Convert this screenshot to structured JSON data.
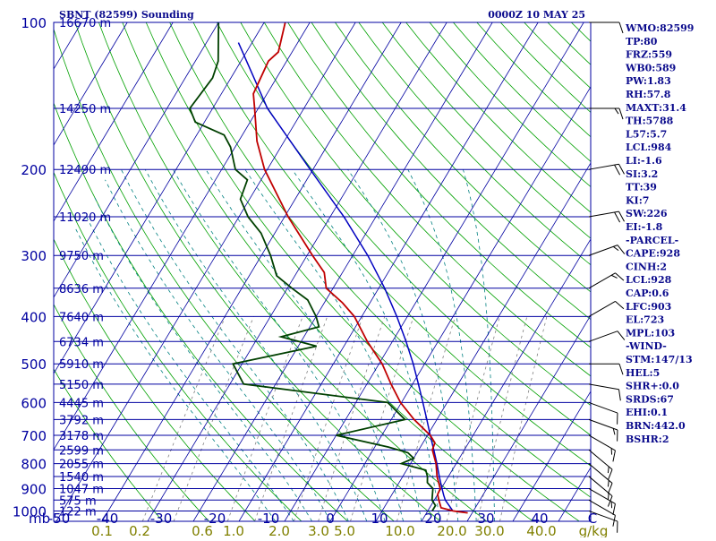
{
  "chart_data": {
    "type": "skew-t",
    "title_left": "SBNT (82599) Sounding",
    "title_right": "0000Z 10 MAY 25",
    "x_axis_label": "mb",
    "temperature_ticks": [
      "-50",
      "-40",
      "-30",
      "-20",
      "-10",
      "0",
      "10",
      "20",
      "30",
      "40",
      "C"
    ],
    "mixing_ratio_ticks": [
      "0.1",
      "0.2",
      "0.6",
      "1.0",
      "2.0",
      "3.0",
      "5.0",
      "10.0",
      "20.0",
      "30.0",
      "40.0",
      "g/kg"
    ],
    "pressure_ticks": [
      100,
      200,
      300,
      400,
      500,
      600,
      700,
      800,
      900,
      1000
    ],
    "height_labels": [
      {
        "p": 100,
        "label": "16670 m"
      },
      {
        "p": 150,
        "label": "14250 m"
      },
      {
        "p": 200,
        "label": "12490 m"
      },
      {
        "p": 250,
        "label": "11020 m"
      },
      {
        "p": 300,
        "label": "9750 m"
      },
      {
        "p": 350,
        "label": "8636 m"
      },
      {
        "p": 400,
        "label": "7640 m"
      },
      {
        "p": 450,
        "label": "6734 m"
      },
      {
        "p": 500,
        "label": "5910 m"
      },
      {
        "p": 550,
        "label": "5150 m"
      },
      {
        "p": 600,
        "label": "4445 m"
      },
      {
        "p": 650,
        "label": "3792 m"
      },
      {
        "p": 700,
        "label": "3178 m"
      },
      {
        "p": 750,
        "label": "2599 m"
      },
      {
        "p": 800,
        "label": "2055 m"
      },
      {
        "p": 850,
        "label": "1540 m"
      },
      {
        "p": 900,
        "label": "1047 m"
      },
      {
        "p": 950,
        "label": "575 m"
      },
      {
        "p": 1000,
        "label": "122 m"
      }
    ],
    "temperature_profile": [
      {
        "p": 1009,
        "t": 29.0
      },
      {
        "p": 1000,
        "t": 25.5
      },
      {
        "p": 985,
        "t": 22.5
      },
      {
        "p": 950,
        "t": 21.0
      },
      {
        "p": 925,
        "t": 20.0
      },
      {
        "p": 900,
        "t": 19.8
      },
      {
        "p": 850,
        "t": 17.5
      },
      {
        "p": 800,
        "t": 15.6
      },
      {
        "p": 750,
        "t": 13.0
      },
      {
        "p": 725,
        "t": 12.6
      },
      {
        "p": 700,
        "t": 10.6
      },
      {
        "p": 650,
        "t": 5.0
      },
      {
        "p": 600,
        "t": -0.2
      },
      {
        "p": 550,
        "t": -4.7
      },
      {
        "p": 500,
        "t": -9.3
      },
      {
        "p": 450,
        "t": -15.5
      },
      {
        "p": 400,
        "t": -21.6
      },
      {
        "p": 375,
        "t": -26.0
      },
      {
        "p": 350,
        "t": -31.5
      },
      {
        "p": 325,
        "t": -34.0
      },
      {
        "p": 300,
        "t": -38.8
      },
      {
        "p": 250,
        "t": -49.2
      },
      {
        "p": 200,
        "t": -60.6
      },
      {
        "p": 175,
        "t": -66.0
      },
      {
        "p": 150,
        "t": -70.8
      },
      {
        "p": 140,
        "t": -73.0
      },
      {
        "p": 120,
        "t": -74.0
      },
      {
        "p": 115,
        "t": -73.0
      },
      {
        "p": 100,
        "t": -75.4
      }
    ],
    "dewpoint_profile": [
      {
        "p": 1000,
        "t": 21.0
      },
      {
        "p": 975,
        "t": 21.0
      },
      {
        "p": 950,
        "t": 19.5
      },
      {
        "p": 900,
        "t": 18.2
      },
      {
        "p": 875,
        "t": 16.2
      },
      {
        "p": 850,
        "t": 15.4
      },
      {
        "p": 825,
        "t": 14.2
      },
      {
        "p": 800,
        "t": 8.0
      },
      {
        "p": 780,
        "t": 10.0
      },
      {
        "p": 760,
        "t": 8.0
      },
      {
        "p": 740,
        "t": 3.0
      },
      {
        "p": 700,
        "t": -10.0
      },
      {
        "p": 650,
        "t": 3.0
      },
      {
        "p": 600,
        "t": -3.0
      },
      {
        "p": 550,
        "t": -37.0
      },
      {
        "p": 500,
        "t": -42.0
      },
      {
        "p": 460,
        "t": -26.0
      },
      {
        "p": 440,
        "t": -35.0
      },
      {
        "p": 420,
        "t": -28.0
      },
      {
        "p": 400,
        "t": -30.0
      },
      {
        "p": 370,
        "t": -34.0
      },
      {
        "p": 350,
        "t": -39.0
      },
      {
        "p": 330,
        "t": -44.0
      },
      {
        "p": 300,
        "t": -48.0
      },
      {
        "p": 270,
        "t": -53.0
      },
      {
        "p": 250,
        "t": -58.0
      },
      {
        "p": 230,
        "t": -62.0
      },
      {
        "p": 210,
        "t": -63.0
      },
      {
        "p": 200,
        "t": -67.0
      },
      {
        "p": 180,
        "t": -71.0
      },
      {
        "p": 170,
        "t": -74.0
      },
      {
        "p": 160,
        "t": -82.0
      },
      {
        "p": 150,
        "t": -85.0
      },
      {
        "p": 130,
        "t": -84.0
      },
      {
        "p": 120,
        "t": -85.0
      },
      {
        "p": 100,
        "t": -90.0
      }
    ],
    "parcel_profile": [
      {
        "p": 1000,
        "t": 25.5
      },
      {
        "p": 950,
        "t": 22.4
      },
      {
        "p": 928,
        "t": 21.4
      },
      {
        "p": 900,
        "t": 20.2
      },
      {
        "p": 850,
        "t": 18.0
      },
      {
        "p": 800,
        "t": 15.8
      },
      {
        "p": 750,
        "t": 13.3
      },
      {
        "p": 700,
        "t": 10.6
      },
      {
        "p": 650,
        "t": 7.8
      },
      {
        "p": 600,
        "t": 4.7
      },
      {
        "p": 550,
        "t": 1.3
      },
      {
        "p": 500,
        "t": -2.5
      },
      {
        "p": 450,
        "t": -7.0
      },
      {
        "p": 400,
        "t": -12.3
      },
      {
        "p": 350,
        "t": -18.7
      },
      {
        "p": 300,
        "t": -26.7
      },
      {
        "p": 250,
        "t": -37.0
      },
      {
        "p": 200,
        "t": -50.6
      },
      {
        "p": 150,
        "t": -68.0
      },
      {
        "p": 110,
        "t": -83.0
      }
    ],
    "winds": [
      {
        "p": 100,
        "dir": 90,
        "spd": 10
      },
      {
        "p": 150,
        "dir": 90,
        "spd": 15
      },
      {
        "p": 200,
        "dir": 80,
        "spd": 20
      },
      {
        "p": 250,
        "dir": 80,
        "spd": 20
      },
      {
        "p": 300,
        "dir": 70,
        "spd": 15
      },
      {
        "p": 350,
        "dir": 60,
        "spd": 15
      },
      {
        "p": 400,
        "dir": 60,
        "spd": 10
      },
      {
        "p": 450,
        "dir": 70,
        "spd": 10
      },
      {
        "p": 500,
        "dir": 90,
        "spd": 10
      },
      {
        "p": 550,
        "dir": 100,
        "spd": 10
      },
      {
        "p": 600,
        "dir": 110,
        "spd": 10
      },
      {
        "p": 650,
        "dir": 110,
        "spd": 15
      },
      {
        "p": 700,
        "dir": 120,
        "spd": 15
      },
      {
        "p": 750,
        "dir": 130,
        "spd": 15
      },
      {
        "p": 800,
        "dir": 130,
        "spd": 15
      },
      {
        "p": 850,
        "dir": 130,
        "spd": 15
      },
      {
        "p": 900,
        "dir": 120,
        "spd": 15
      },
      {
        "p": 950,
        "dir": 120,
        "spd": 10
      },
      {
        "p": 1000,
        "dir": 110,
        "spd": 10
      }
    ],
    "indices": [
      "WMO:82599",
      "TP:80",
      "FRZ:559",
      "WB0:589",
      "PW:1.83",
      "RH:57.8",
      "MAXT:31.4",
      "TH:5788",
      "L57:5.7",
      "LCL:984",
      "LI:-1.6",
      "SI:3.2",
      "TT:39",
      "KI:7",
      "SW:226",
      "EI:-1.8",
      "-PARCEL-",
      "CAPE:928",
      "CINH:2",
      "LCL:928",
      "CAP:0.6",
      "LFC:903",
      "EL:723",
      "MPL:103",
      "-WIND-",
      "STM:147/13",
      "HEL:5",
      "SHR+:0.0",
      "SRDS:67",
      "EHI:0.1",
      "BRN:442.0",
      "BSHR:2"
    ],
    "colors": {
      "background": "#ffffff",
      "isobar": "#0000a0",
      "isotherm": "#0000a0",
      "dry_adiabat": "#00a000",
      "moist_adiabat": "#008080",
      "mixing_ratio": "#808080",
      "temperature": "#c00000",
      "dewpoint": "#004000",
      "parcel": "#0000c0",
      "mixing_ratio_labels": "#808000",
      "text": "#0a0a8c"
    }
  }
}
